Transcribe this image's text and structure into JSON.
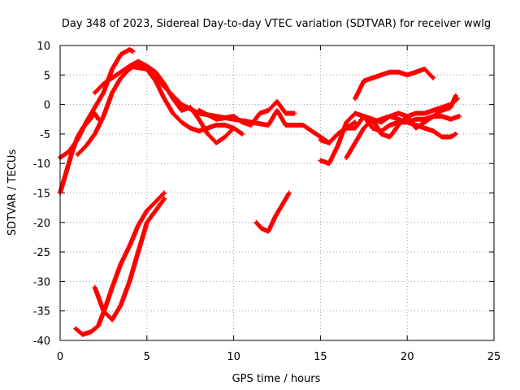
{
  "chart_data": {
    "type": "scatter",
    "title": "Day 348 of 2023, Sidereal Day-to-day VTEC variation (SDTVAR) for receiver wwlg",
    "xlabel": "GPS time / hours",
    "ylabel": "SDTVAR / TECUs",
    "xlim": [
      0,
      25
    ],
    "ylim": [
      -40,
      10
    ],
    "xticks": [
      0,
      5,
      10,
      15,
      20,
      25
    ],
    "yticks": [
      -40,
      -35,
      -30,
      -25,
      -20,
      -15,
      -10,
      -5,
      0,
      5,
      10
    ],
    "grid": true,
    "marker": "+",
    "colors": {
      "series": "#ff0000"
    },
    "series": [
      {
        "x": [
          0.0,
          0.4,
          0.7,
          1.0,
          1.3,
          1.6,
          2.0,
          2.2
        ],
        "y": [
          -15,
          -11,
          -8,
          -5.5,
          -4,
          -3,
          -1.5,
          -2.5
        ]
      },
      {
        "x": [
          0.0,
          0.5,
          1.0,
          1.5,
          2.0,
          2.5,
          3.0,
          3.5,
          4.0,
          4.2
        ],
        "y": [
          -9,
          -8,
          -6,
          -3,
          -0.5,
          2,
          6,
          8.5,
          9.3,
          9
        ]
      },
      {
        "x": [
          1.0,
          1.5,
          2.0,
          2.5,
          3.0,
          3.5,
          4.0,
          4.5,
          5.0,
          5.5,
          6.0,
          6.5,
          7.0,
          7.5,
          8.0,
          8.5,
          9.0,
          9.5,
          10.0
        ],
        "y": [
          -8.5,
          -7,
          -5,
          -2,
          2,
          4.5,
          6,
          7,
          6,
          4,
          1,
          -1.5,
          -3,
          -4,
          -4.5,
          -4,
          -3.5,
          -3.5,
          -4
        ]
      },
      {
        "x": [
          2.0,
          2.5,
          3.0,
          3.5,
          4.0,
          4.5,
          5.0,
          5.5,
          6.0,
          6.5,
          7.0,
          7.5,
          8.0,
          8.5,
          9.0,
          9.5,
          10.0,
          10.5
        ],
        "y": [
          2,
          3.5,
          4.5,
          5.5,
          6.5,
          7.3,
          6.5,
          5.5,
          3.5,
          1,
          -1,
          -0.5,
          -2.5,
          -5,
          -6.5,
          -5.5,
          -4,
          -5
        ]
      },
      {
        "x": [
          4.0,
          5.0,
          6.0,
          7.0,
          8.0,
          9.0,
          10.0,
          11.0,
          12.0,
          12.5,
          13.0,
          14.0,
          15.0,
          15.5,
          16.0,
          17.0
        ],
        "y": [
          6.5,
          6,
          3,
          0,
          -1.5,
          -2,
          -2.5,
          -3,
          -3.5,
          -1,
          -3.5,
          -3.5,
          -5.5,
          -6.5,
          -5,
          -3
        ]
      },
      {
        "x": [
          8.0,
          9.0,
          10.0,
          10.5,
          11.0,
          11.5,
          12.0,
          12.5,
          13.0,
          13.5
        ],
        "y": [
          -1,
          -2.5,
          -2,
          -3,
          -3.5,
          -1.5,
          -1,
          0.5,
          -1.5,
          -1.5
        ]
      },
      {
        "x": [
          0.9,
          1.3,
          1.8,
          2.2,
          2.6,
          3.0,
          3.5,
          4.0,
          4.5,
          5.0,
          5.5,
          6.0
        ],
        "y": [
          -38,
          -39,
          -38.5,
          -37.5,
          -34.5,
          -31,
          -27,
          -24,
          -20.5,
          -18,
          -16.5,
          -15
        ]
      },
      {
        "x": [
          2.0,
          2.5,
          3.0,
          3.5,
          4.0,
          4.5,
          5.0,
          5.5,
          6.0
        ],
        "y": [
          -31,
          -35,
          -36.5,
          -34,
          -30,
          -25,
          -20,
          -18,
          -16
        ]
      },
      {
        "x": [
          11.3,
          11.6,
          12.0,
          12.4,
          12.8,
          13.2
        ],
        "y": [
          -20,
          -21,
          -21.5,
          -19,
          -17,
          -15
        ]
      },
      {
        "x": [
          15.0,
          15.5,
          16.0,
          16.5,
          17.0,
          17.5,
          18.0,
          18.5,
          19.0,
          19.5,
          20.0,
          20.5,
          21.0,
          21.5,
          22.0,
          22.5,
          23.0
        ],
        "y": [
          -9.5,
          -10,
          -7,
          -3,
          -1.5,
          -2,
          -2.5,
          -3,
          -2,
          -2.5,
          -3,
          -2.5,
          -2.5,
          -2,
          -2,
          -2.5,
          -2
        ]
      },
      {
        "x": [
          15.0,
          15.5,
          16.0,
          16.5,
          17.0,
          17.5,
          18.0,
          18.5,
          19.0,
          19.5,
          20.0,
          20.5,
          21.0,
          21.5,
          22.0,
          22.5,
          22.8
        ],
        "y": [
          -6,
          -6.5,
          -5,
          -4,
          -4,
          -2,
          -4,
          -4.5,
          -3.5,
          -3,
          -3,
          -3.5,
          -4,
          -4.5,
          -5.5,
          -5.5,
          -5
        ]
      },
      {
        "x": [
          16.5,
          17.0,
          17.5,
          18.0,
          18.5,
          19.0,
          19.5,
          20.0,
          20.5,
          21.0,
          21.5,
          22.0,
          22.5,
          22.8
        ],
        "y": [
          -9,
          -6.5,
          -4,
          -2.5,
          -5,
          -5.5,
          -3.5,
          -2,
          -4,
          -3,
          -2,
          -1,
          -0.5,
          1.5
        ]
      },
      {
        "x": [
          17.0,
          17.5,
          18.0,
          18.5,
          19.0,
          19.5,
          20.0,
          20.5,
          21.0,
          21.5
        ],
        "y": [
          1,
          4,
          4.5,
          5,
          5.5,
          5.5,
          5,
          5.5,
          6,
          4.5
        ]
      },
      {
        "x": [
          18.0,
          18.5,
          19.0,
          19.5,
          20.0,
          20.5,
          21.0,
          21.5,
          22.0,
          22.5,
          22.9
        ],
        "y": [
          -3,
          -2.5,
          -2,
          -1.5,
          -2,
          -1.5,
          -1.5,
          -1,
          -0.5,
          0,
          1
        ]
      }
    ]
  }
}
